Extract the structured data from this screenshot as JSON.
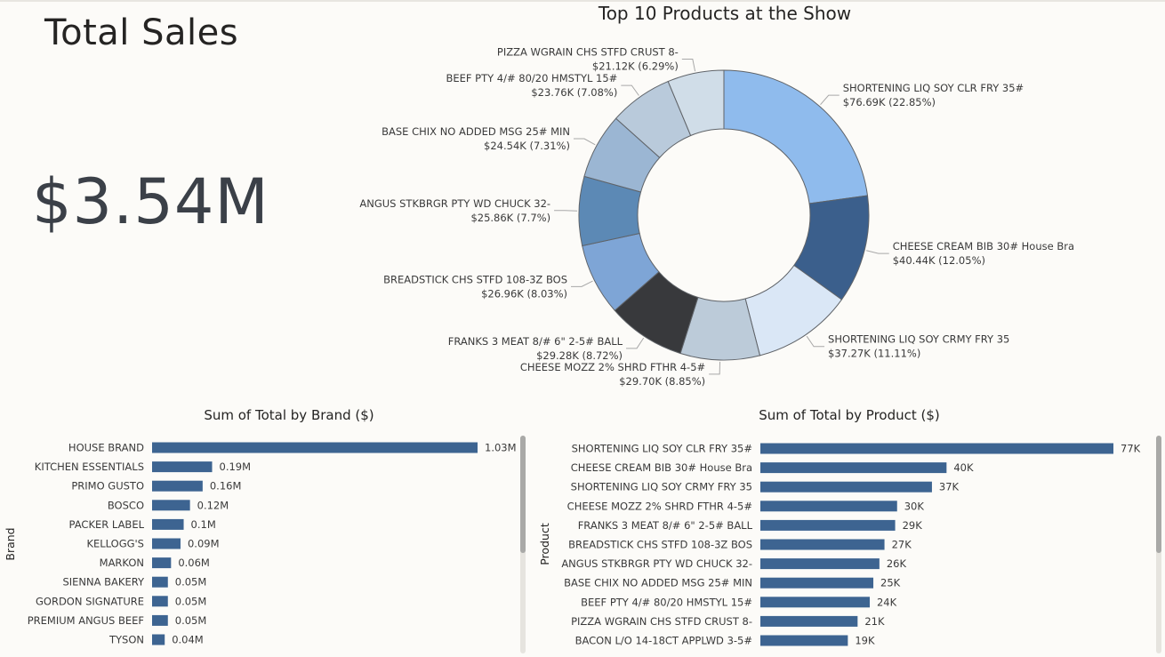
{
  "kpi": {
    "title": "Total Sales",
    "value": "$3.54M"
  },
  "colors": {
    "bar": "#3d6491",
    "text": "#252423",
    "kpi_value": "#3b4048",
    "slice_stroke": "#5f6368"
  },
  "donut": {
    "title": "Top 10 Products at the Show"
  },
  "brand_chart": {
    "title": "Sum of Total by Brand ($)",
    "axis_label": "Brand"
  },
  "product_chart": {
    "title": "Sum of Total by Product ($)",
    "axis_label": "Product"
  },
  "chart_data": [
    {
      "type": "pie",
      "title": "Top 10 Products at the Show",
      "slices": [
        {
          "label": "SHORTENING LIQ SOY CLR FRY 35#",
          "value_text": "$76.69K (22.85%)",
          "value": 76.69,
          "percent": 22.85,
          "color": "#8fbbed"
        },
        {
          "label": "CHEESE CREAM BIB 30# House Bra",
          "value_text": "$40.44K (12.05%)",
          "value": 40.44,
          "percent": 12.05,
          "color": "#3b5f8c"
        },
        {
          "label": "SHORTENING LIQ SOY CRMY FRY 35",
          "value_text": "$37.27K (11.11%)",
          "value": 37.27,
          "percent": 11.11,
          "color": "#dae7f6"
        },
        {
          "label": "CHEESE MOZZ 2% SHRD FTHR 4-5#",
          "value_text": "$29.70K (8.85%)",
          "value": 29.7,
          "percent": 8.85,
          "color": "#bccbd9"
        },
        {
          "label": "FRANKS 3 MEAT 8/# 6\" 2-5# BALL",
          "value_text": "$29.28K (8.72%)",
          "value": 29.28,
          "percent": 8.72,
          "color": "#38393c"
        },
        {
          "label": "BREADSTICK CHS STFD 108-3Z BOS",
          "value_text": "$26.96K (8.03%)",
          "value": 26.96,
          "percent": 8.03,
          "color": "#7ea5d6"
        },
        {
          "label": "ANGUS STKBRGR PTY WD CHUCK 32-",
          "value_text": "$25.86K (7.7%)",
          "value": 25.86,
          "percent": 7.7,
          "color": "#5c89b5"
        },
        {
          "label": "BASE CHIX NO ADDED MSG 25# MIN",
          "value_text": "$24.54K (7.31%)",
          "value": 24.54,
          "percent": 7.31,
          "color": "#9bb6d3"
        },
        {
          "label": "BEEF PTY 4/# 80/20 HMSTYL 15#",
          "value_text": "$23.76K (7.08%)",
          "value": 23.76,
          "percent": 7.08,
          "color": "#b9cadb"
        },
        {
          "label": "PIZZA WGRAIN CHS STFD CRUST 8-",
          "value_text": "$21.12K (6.29%)",
          "value": 21.12,
          "percent": 6.29,
          "color": "#d0dde8"
        }
      ]
    },
    {
      "type": "bar",
      "orientation": "horizontal",
      "title": "Sum of Total by Brand ($)",
      "ylabel": "Brand",
      "categories": [
        "HOUSE BRAND",
        "KITCHEN ESSENTIALS",
        "PRIMO GUSTO",
        "BOSCO",
        "PACKER LABEL",
        "KELLOGG'S",
        "MARKON",
        "SIENNA BAKERY",
        "GORDON SIGNATURE",
        "PREMIUM ANGUS BEEF",
        "TYSON"
      ],
      "values": [
        1.03,
        0.19,
        0.16,
        0.12,
        0.1,
        0.09,
        0.06,
        0.05,
        0.05,
        0.05,
        0.04
      ],
      "value_labels": [
        "1.03M",
        "0.19M",
        "0.16M",
        "0.12M",
        "0.1M",
        "0.09M",
        "0.06M",
        "0.05M",
        "0.05M",
        "0.05M",
        "0.04M"
      ],
      "unit": "M"
    },
    {
      "type": "bar",
      "orientation": "horizontal",
      "title": "Sum of Total by Product ($)",
      "ylabel": "Product",
      "categories": [
        "SHORTENING LIQ SOY CLR FRY 35#",
        "CHEESE CREAM BIB 30# House Bra",
        "SHORTENING LIQ SOY CRMY FRY 35",
        "CHEESE MOZZ 2% SHRD FTHR 4-5#",
        "FRANKS 3 MEAT 8/# 6\" 2-5# BALL",
        "BREADSTICK CHS STFD 108-3Z BOS",
        "ANGUS STKBRGR PTY WD CHUCK 32-",
        "BASE CHIX NO ADDED MSG 25# MIN",
        "BEEF PTY 4/# 80/20 HMSTYL 15#",
        "PIZZA WGRAIN CHS STFD CRUST 8-",
        "BACON L/O 14-18CT APPLWD 3-5#"
      ],
      "values": [
        76.69,
        40.44,
        37.27,
        29.7,
        29.28,
        26.96,
        25.86,
        24.54,
        23.76,
        21.12,
        19.0
      ],
      "value_labels": [
        "77K",
        "40K",
        "37K",
        "30K",
        "29K",
        "27K",
        "26K",
        "25K",
        "24K",
        "21K",
        "19K"
      ],
      "unit": "K"
    }
  ]
}
